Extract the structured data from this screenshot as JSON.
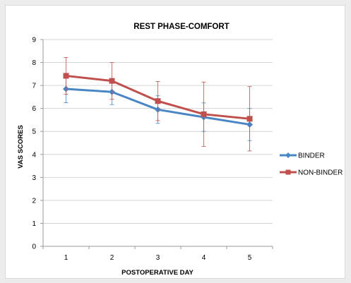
{
  "chart_data": {
    "type": "line",
    "title": "REST PHASE-COMFORT",
    "xlabel": "POSTOPERATIVE DAY",
    "ylabel": "VAS SCORES",
    "x": [
      1,
      2,
      3,
      4,
      5
    ],
    "ylim": [
      0,
      9
    ],
    "yticks": [
      0,
      1,
      2,
      3,
      4,
      5,
      6,
      7,
      8,
      9
    ],
    "grid": true,
    "legend_position": "right",
    "series": [
      {
        "name": "BINDER",
        "values": [
          6.85,
          6.72,
          5.95,
          5.62,
          5.3
        ],
        "error": [
          0.6,
          0.55,
          0.6,
          0.62,
          0.7
        ],
        "color": "#4a86c5",
        "marker": "diamond"
      },
      {
        "name": "NON-BINDER",
        "values": [
          7.42,
          7.2,
          6.32,
          5.75,
          5.55
        ],
        "error": [
          0.8,
          0.8,
          0.85,
          1.4,
          1.4
        ],
        "color": "#c0504d",
        "marker": "square"
      }
    ]
  }
}
